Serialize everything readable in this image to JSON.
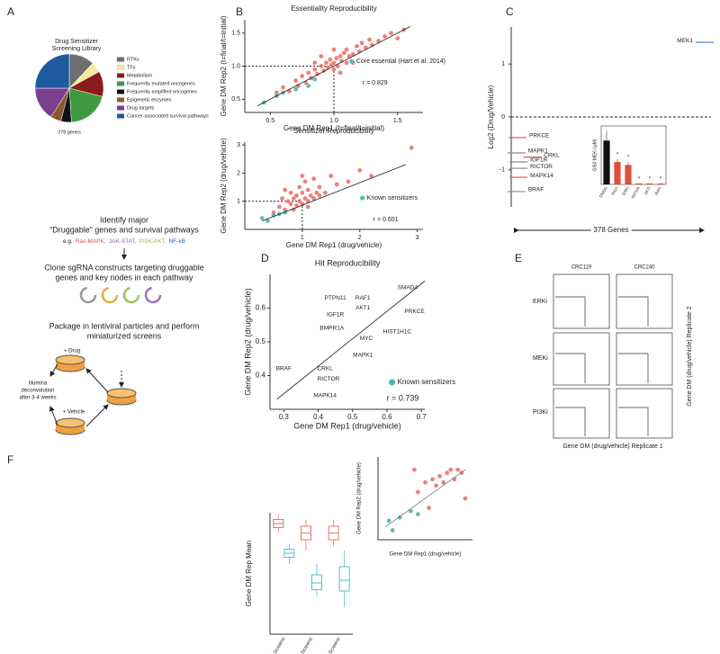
{
  "panels": {
    "labels": [
      "A",
      "B",
      "C",
      "D",
      "E",
      "F"
    ],
    "A": {
      "step1": [
        "Identify major",
        "“Druggable” genes and survival pathways"
      ],
      "examples_prefix": "e.g.",
      "examples": [
        {
          "text": "Ras-MAPK,",
          "color": "#e0504a"
        },
        {
          "text": "JAK-STAT,",
          "color": "#8e5fb0"
        },
        {
          "text": "PI3K-AKT,",
          "color": "#9ab83a"
        },
        {
          "text": "NF-kB",
          "color": "#2a5db0"
        }
      ],
      "step2": [
        "Clone sgRNA constructs targeting druggable",
        "genes and key nodes in each pathway"
      ],
      "step3": [
        "Package in lentiviral particles and perform",
        "miniaturized screens"
      ],
      "drug": "+ Drug",
      "vehicle": "+ Vehicle",
      "readout": [
        "Illumina",
        "deconvolution",
        "after 3-4 weeks"
      ]
    },
    "E": {
      "columns": [
        "CRC119",
        "CRC240"
      ],
      "rows": [
        "ERKi",
        "MEKi",
        "PI3Ki"
      ],
      "xlabel": "Gene DM (drug/vehicle) Replicate 1",
      "ylabel": "Gene DM (drug/vehicle) Replicate 2"
    }
  },
  "chart_data": [
    {
      "type": "pie",
      "title": [
        "Drug Sensitizer",
        "Screening Library"
      ],
      "total_label": "378 genes",
      "categories": [
        "RTKs",
        "TFs",
        "Metabolism",
        "Frequently mutated oncogenes",
        "Frequently amplified oncogenes",
        "Epigenetic enzymes",
        "Drug targets",
        "Cancer-associated survival pathways"
      ],
      "values": [
        12,
        5,
        12,
        20,
        5,
        5,
        16,
        25
      ],
      "colors": [
        "#6d6e70",
        "#f3eca0",
        "#8b1a1a",
        "#3f9a3f",
        "#111111",
        "#8b5a2b",
        "#7b3f8f",
        "#1f5a9e"
      ]
    },
    {
      "type": "scatter",
      "title": "Essentiality Reproducibility",
      "xlabel": "Gene DM Rep1 (t=final/t=initial)",
      "ylabel": "Gene DM Rep2 (t=final/t=initial)",
      "xlim": [
        0.3,
        1.7
      ],
      "ylim": [
        0.3,
        1.7
      ],
      "xticks": [
        0.5,
        {
          "value": 1,
          "label": "1.0"
        },
        1.5
      ],
      "yticks": [
        0.5,
        {
          "value": 1,
          "label": "1.0"
        },
        1.5
      ],
      "crosshair": [
        1,
        1
      ],
      "series": [
        {
          "color": "#e8766f",
          "x": [
            0.55,
            0.6,
            0.65,
            0.7,
            0.72,
            0.75,
            0.78,
            0.8,
            0.82,
            0.85,
            0.87,
            0.9,
            0.92,
            0.94,
            0.95,
            0.97,
            0.98,
            1.0,
            1.0,
            1.02,
            1.03,
            1.05,
            1.06,
            1.08,
            1.1,
            1.1,
            1.12,
            1.15,
            1.18,
            1.2,
            1.22,
            1.25,
            1.28,
            1.3,
            1.35,
            1.4,
            1.45,
            1.5,
            1.55,
            0.9,
            1.0,
            1.15,
            0.85,
            1.05
          ],
          "values": [
            0.6,
            0.68,
            0.62,
            0.78,
            0.7,
            0.85,
            0.75,
            0.9,
            0.82,
            0.95,
            0.88,
            1.0,
            0.93,
            1.05,
            0.98,
            1.1,
            1.02,
            1.05,
            0.95,
            1.12,
            1.0,
            1.15,
            1.08,
            1.2,
            1.05,
            1.25,
            1.15,
            1.18,
            1.3,
            1.22,
            1.35,
            1.28,
            1.4,
            1.32,
            1.38,
            1.45,
            1.5,
            1.42,
            1.55,
            1.15,
            1.25,
            1.05,
            1.05,
            0.9
          ]
        },
        {
          "name": "Core essential (Hart et al. 2014)",
          "color": "#4fb7b3",
          "x": [
            0.45,
            0.55,
            0.6,
            0.7,
            0.8,
            0.85
          ],
          "values": [
            0.45,
            0.55,
            0.6,
            0.65,
            0.7,
            0.8
          ]
        },
        {
          "type": "line",
          "color": "#222222",
          "x": [
            0.4,
            1.6
          ],
          "values": [
            0.4,
            1.6
          ]
        }
      ],
      "annotation": "r = 0.829"
    },
    {
      "type": "scatter",
      "title": "Sensitizer Reproducibility",
      "xlabel": "Gene DM Rep1 (drug/vehicle)",
      "ylabel": "Gene DM Rep2 (drug/vehicle)",
      "xlim": [
        0,
        3.1
      ],
      "ylim": [
        0,
        3.1
      ],
      "xticks": [
        1,
        2,
        3
      ],
      "yticks": [
        1,
        2,
        3
      ],
      "crosshair": [
        1,
        1
      ],
      "series": [
        {
          "color": "#e8766f",
          "x": [
            0.5,
            0.6,
            0.7,
            0.75,
            0.8,
            0.85,
            0.9,
            0.9,
            0.95,
            1.0,
            1.0,
            1.05,
            1.1,
            1.1,
            1.15,
            1.2,
            1.25,
            1.3,
            0.65,
            0.8,
            0.95,
            1.05,
            1.2,
            1.4,
            1.5,
            1.6,
            1.8,
            2.0,
            2.2,
            2.9,
            0.7,
            0.85,
            1.0,
            1.1,
            1.3
          ],
          "values": [
            0.6,
            0.8,
            0.7,
            1.0,
            0.9,
            1.1,
            0.85,
            1.2,
            1.0,
            0.9,
            1.3,
            1.1,
            1.0,
            1.4,
            1.2,
            1.1,
            1.3,
            1.5,
            1.1,
            1.3,
            1.5,
            1.7,
            1.8,
            1.3,
            1.9,
            1.6,
            1.7,
            2.1,
            1.9,
            2.9,
            1.4,
            0.7,
            1.9,
            0.8,
            1.2
          ]
        },
        {
          "name": "Known sensitizers",
          "color": "#4fb7b3",
          "x": [
            0.3,
            0.4,
            0.5,
            0.6,
            0.7
          ],
          "values": [
            0.4,
            0.3,
            0.5,
            0.55,
            0.6
          ]
        },
        {
          "type": "line",
          "color": "#222222",
          "x": [
            0.3,
            2.8
          ],
          "values": [
            0.3,
            2.3
          ]
        }
      ],
      "annotation": "r = 0.601"
    },
    {
      "type": "rank",
      "ylabel": "Log2 (Drug/Vehicle)",
      "xlabel": "378 Genes",
      "xlim": [
        0,
        380
      ],
      "ylim": [
        -1.7,
        1.7
      ],
      "yticks": [
        -1,
        0,
        1
      ],
      "categories": [
        "MEK1",
        "PRKCE",
        "CRKL",
        "MAPK1",
        "IGF1R",
        "RICTOR",
        "MAPK14",
        "BRAF"
      ],
      "x": [
        368,
        12,
        40,
        10,
        14,
        14,
        14,
        10
      ],
      "values": [
        1.41,
        -0.39,
        -0.76,
        -0.68,
        -0.85,
        -0.97,
        -1.14,
        -1.41
      ],
      "colors": [
        "#3a6fc4",
        "#e0503a",
        "#e0503a",
        "#8a8a8a",
        "#8a8a8a",
        "#8a8a8a",
        "#e0503a",
        "#8a8a8a"
      ]
    },
    {
      "type": "bar",
      "ylabel": "GI50 MEKi (μM)",
      "ylim": [
        0,
        6
      ],
      "categories": [
        "DMSO",
        "PKCi",
        "ERKi",
        "IGF1Ri",
        "AKTi",
        "RAFi"
      ],
      "values": [
        4.5,
        2.3,
        2.0,
        0.1,
        0.1,
        0.1
      ],
      "errors": [
        1.0,
        0.3,
        0.3,
        0,
        0,
        0
      ],
      "colors": [
        "#111111",
        "#e0503a",
        "#e0503a",
        "#e0503a",
        "#e0503a",
        "#e0503a"
      ],
      "annotations": [
        null,
        "*",
        "*",
        "*",
        "*",
        "*"
      ]
    },
    {
      "type": "label-scatter",
      "title": "Hit Reproducibility",
      "xlabel": "Gene DM Rep1 (drug/vehicle)",
      "ylabel": "Gene DM Rep2 (drug/vehicle)",
      "xlim": [
        0.26,
        0.71
      ],
      "ylim": [
        0.3,
        0.7
      ],
      "xticks": [
        0.3,
        0.4,
        0.5,
        0.6,
        0.7
      ],
      "yticks": [
        0.4,
        0.5,
        0.6
      ],
      "categories": [
        "SMAD4",
        "PTPN11",
        "RAF1",
        "AKT1",
        "PRKCE",
        "IGF1R",
        "BMPR1A",
        "MYC",
        "HIST1H1C",
        "MAPK1",
        "BRAF",
        "CRKL",
        "RICTOR",
        "MAPK14"
      ],
      "x": [
        0.66,
        0.45,
        0.53,
        0.53,
        0.68,
        0.45,
        0.44,
        0.54,
        0.63,
        0.53,
        0.3,
        0.42,
        0.43,
        0.42
      ],
      "values": [
        0.66,
        0.63,
        0.63,
        0.6,
        0.59,
        0.58,
        0.54,
        0.51,
        0.53,
        0.46,
        0.42,
        0.42,
        0.39,
        0.34
      ],
      "fit": {
        "x": [
          0.28,
          0.71
        ],
        "values": [
          0.33,
          0.68
        ]
      },
      "legend": {
        "name": "Known sensitizers",
        "color": "#4fb7b3"
      },
      "annotation": "r = 0.739"
    },
    {
      "type": "box",
      "ylabel": "Gene DM Rep Mean",
      "ylim": [
        0.1,
        1.0
      ],
      "categories": [
        "PI3Ki Screens",
        "MEKi Screens",
        "ERKi Screens"
      ],
      "series": [
        {
          "color": "#e8766f",
          "min": [
            0.85,
            0.72,
            0.75
          ],
          "q1": [
            0.89,
            0.8,
            0.8
          ],
          "median": [
            0.92,
            0.85,
            0.85
          ],
          "q3": [
            0.95,
            0.9,
            0.9
          ],
          "max": [
            0.99,
            0.95,
            0.95
          ]
        },
        {
          "color": "#4fc3c3",
          "min": [
            0.62,
            0.38,
            0.3
          ],
          "q1": [
            0.67,
            0.43,
            0.42
          ],
          "median": [
            0.7,
            0.48,
            0.5
          ],
          "q3": [
            0.73,
            0.54,
            0.6
          ],
          "max": [
            0.77,
            0.62,
            0.72
          ]
        }
      ]
    },
    {
      "type": "scatter",
      "xlabel": "Gene DM Rep1 (drug/vehicle)",
      "ylabel": "Gene DM Rep2 (drug/vehicle)",
      "xlim": [
        0,
        1.3
      ],
      "ylim": [
        0,
        1.3
      ],
      "series": [
        {
          "color": "#e8766f",
          "x": [
            0.55,
            0.7,
            0.75,
            0.8,
            0.85,
            0.9,
            0.95,
            1.0,
            1.05,
            1.1,
            1.15,
            0.5,
            1.2,
            0.65
          ],
          "values": [
            0.75,
            0.5,
            0.95,
            0.85,
            1.0,
            0.9,
            1.05,
            1.1,
            0.95,
            1.1,
            1.05,
            1.1,
            0.65,
            0.9
          ]
        },
        {
          "color": "#4fb7b3",
          "x": [
            0.15,
            0.3,
            0.45,
            0.55,
            0.2
          ],
          "values": [
            0.3,
            0.35,
            0.45,
            0.4,
            0.15
          ]
        },
        {
          "type": "line",
          "color": "#777777",
          "x": [
            0.1,
            1.2
          ],
          "values": [
            0.2,
            1.1
          ]
        }
      ]
    }
  ]
}
